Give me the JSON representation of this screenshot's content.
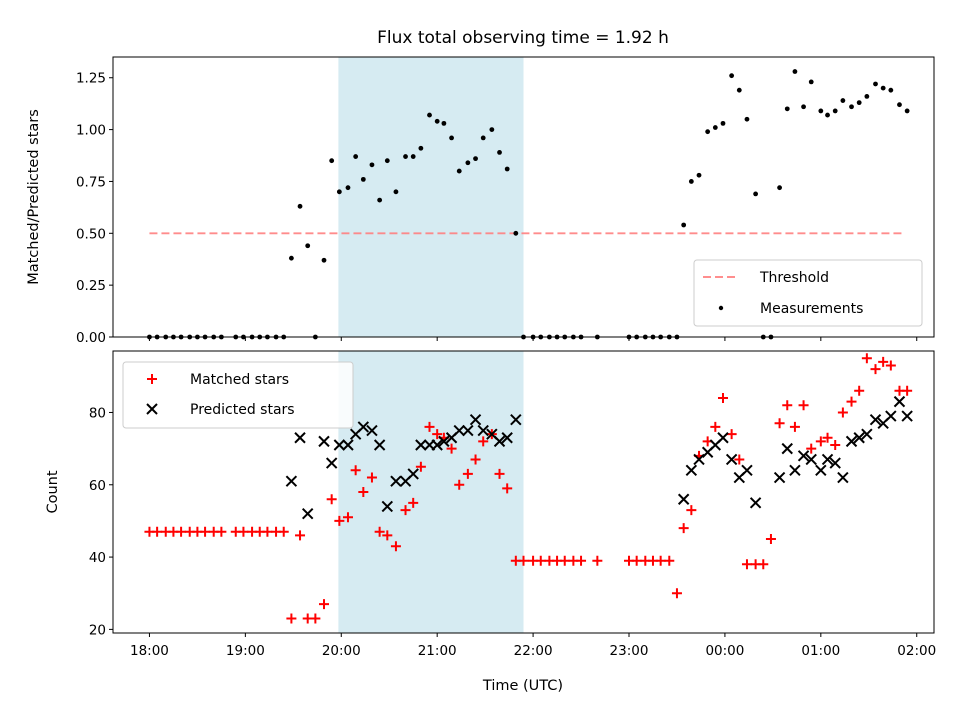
{
  "title": "Flux total observing time = 1.92 h",
  "colors": {
    "shade": "#add8e6",
    "threshold": "#ff7f7f",
    "measurement": "#000000",
    "matched": "#ff0000",
    "predicted": "#000000"
  },
  "chart_data": [
    {
      "type": "scatter",
      "ylabel": "Matched/Predicted stars",
      "ylim": [
        0,
        1.35
      ],
      "yticks": [
        0.0,
        0.25,
        0.5,
        0.75,
        1.0,
        1.25
      ],
      "ytick_labels": [
        "0.00",
        "0.25",
        "0.50",
        "0.75",
        "1.00",
        "1.25"
      ],
      "shaded_interval": [
        19.97,
        21.9
      ],
      "threshold": {
        "name": "Threshold",
        "y": 0.5,
        "x_range": [
          18.0,
          25.85
        ]
      },
      "legend": {
        "location": "lower right",
        "entries": [
          "Threshold",
          "Measurements"
        ]
      },
      "series": [
        {
          "name": "Measurements",
          "x": [
            18.0,
            18.08,
            18.17,
            18.25,
            18.33,
            18.42,
            18.5,
            18.58,
            18.67,
            18.75,
            18.9,
            18.98,
            19.07,
            19.15,
            19.23,
            19.32,
            19.4,
            19.48,
            19.57,
            19.65,
            19.73,
            19.82,
            19.9,
            19.98,
            20.07,
            20.15,
            20.23,
            20.32,
            20.4,
            20.48,
            20.57,
            20.67,
            20.75,
            20.83,
            20.92,
            21.0,
            21.07,
            21.15,
            21.23,
            21.32,
            21.4,
            21.48,
            21.57,
            21.65,
            21.73,
            21.82,
            21.9,
            22.0,
            22.08,
            22.17,
            22.25,
            22.33,
            22.42,
            22.5,
            22.67,
            23.0,
            23.08,
            23.17,
            23.25,
            23.33,
            23.42,
            23.5,
            23.57,
            23.65,
            23.73,
            23.82,
            23.9,
            23.98,
            24.07,
            24.15,
            24.23,
            24.32,
            24.4,
            24.48,
            24.57,
            24.65,
            24.73,
            24.82,
            24.9,
            25.0,
            25.07,
            25.15,
            25.23,
            25.32,
            25.4,
            25.48,
            25.57,
            25.65,
            25.73,
            25.82,
            25.9
          ],
          "y": [
            0,
            0,
            0,
            0,
            0,
            0,
            0,
            0,
            0,
            0,
            0,
            0,
            0,
            0,
            0,
            0,
            0,
            0.38,
            0.63,
            0.44,
            0,
            0.37,
            0.85,
            0.7,
            0.72,
            0.87,
            0.76,
            0.83,
            0.66,
            0.85,
            0.7,
            0.87,
            0.87,
            0.91,
            1.07,
            1.04,
            1.03,
            0.96,
            0.8,
            0.84,
            0.86,
            0.96,
            1.0,
            0.89,
            0.81,
            0.5,
            0,
            0,
            0,
            0,
            0,
            0,
            0,
            0,
            0,
            0,
            0,
            0,
            0,
            0,
            0,
            0,
            0.54,
            0.75,
            0.78,
            0.99,
            1.01,
            1.03,
            1.26,
            1.19,
            1.05,
            0.69,
            0,
            0,
            0.72,
            1.1,
            1.28,
            1.11,
            1.23,
            1.09,
            1.07,
            1.09,
            1.14,
            1.11,
            1.13,
            1.16,
            1.22,
            1.2,
            1.19,
            1.12,
            1.09
          ]
        }
      ]
    },
    {
      "type": "scatter",
      "ylabel": "Count",
      "xlabel": "Time (UTC)",
      "ylim": [
        19,
        97
      ],
      "yticks": [
        20,
        40,
        60,
        80
      ],
      "ytick_labels": [
        "20",
        "40",
        "60",
        "80"
      ],
      "xlim": [
        17.62,
        26.18
      ],
      "xticks": [
        18,
        19,
        20,
        21,
        22,
        23,
        24,
        25,
        26
      ],
      "xtick_labels": [
        "18:00",
        "19:00",
        "20:00",
        "21:00",
        "22:00",
        "23:00",
        "00:00",
        "01:00",
        "02:00"
      ],
      "shaded_interval": [
        19.97,
        21.9
      ],
      "legend": {
        "location": "upper left",
        "entries": [
          "Matched stars",
          "Predicted stars"
        ]
      },
      "series": [
        {
          "name": "Matched stars",
          "marker": "+",
          "x": [
            18.0,
            18.08,
            18.17,
            18.25,
            18.33,
            18.42,
            18.5,
            18.58,
            18.67,
            18.75,
            18.9,
            18.98,
            19.07,
            19.15,
            19.23,
            19.32,
            19.4,
            19.48,
            19.57,
            19.65,
            19.73,
            19.82,
            19.9,
            19.98,
            20.07,
            20.15,
            20.23,
            20.32,
            20.4,
            20.48,
            20.57,
            20.67,
            20.75,
            20.83,
            20.92,
            21.0,
            21.07,
            21.15,
            21.23,
            21.32,
            21.4,
            21.48,
            21.57,
            21.65,
            21.73,
            21.82,
            21.9,
            22.0,
            22.08,
            22.17,
            22.25,
            22.33,
            22.42,
            22.5,
            22.67,
            23.0,
            23.08,
            23.17,
            23.25,
            23.33,
            23.42,
            23.5,
            23.57,
            23.65,
            23.73,
            23.82,
            23.9,
            23.98,
            24.07,
            24.15,
            24.23,
            24.32,
            24.4,
            24.48,
            24.57,
            24.65,
            24.73,
            24.82,
            24.9,
            25.0,
            25.07,
            25.15,
            25.23,
            25.32,
            25.4,
            25.48,
            25.57,
            25.65,
            25.73,
            25.82,
            25.9
          ],
          "y": [
            47,
            47,
            47,
            47,
            47,
            47,
            47,
            47,
            47,
            47,
            47,
            47,
            47,
            47,
            47,
            47,
            47,
            23,
            46,
            23,
            23,
            27,
            56,
            50,
            51,
            64,
            58,
            62,
            47,
            46,
            43,
            53,
            55,
            65,
            76,
            74,
            73,
            70,
            60,
            63,
            67,
            72,
            74,
            63,
            59,
            39,
            39,
            39,
            39,
            39,
            39,
            39,
            39,
            39,
            39,
            39,
            39,
            39,
            39,
            39,
            39,
            30,
            48,
            53,
            68,
            72,
            76,
            84,
            74,
            67,
            38,
            38,
            38,
            45,
            77,
            82,
            76,
            82,
            70,
            72,
            73,
            71,
            80,
            83,
            86,
            95,
            92,
            94,
            93,
            86,
            86
          ]
        },
        {
          "name": "Predicted stars",
          "marker": "x",
          "x": [
            19.48,
            19.57,
            19.65,
            19.82,
            19.9,
            19.98,
            20.07,
            20.15,
            20.23,
            20.32,
            20.4,
            20.48,
            20.57,
            20.67,
            20.75,
            20.83,
            20.92,
            21.0,
            21.07,
            21.15,
            21.23,
            21.32,
            21.4,
            21.48,
            21.57,
            21.65,
            21.73,
            21.82,
            23.57,
            23.65,
            23.73,
            23.82,
            23.9,
            23.98,
            24.07,
            24.15,
            24.23,
            24.32,
            24.57,
            24.65,
            24.73,
            24.82,
            24.9,
            25.0,
            25.07,
            25.15,
            25.23,
            25.32,
            25.4,
            25.48,
            25.57,
            25.65,
            25.73,
            25.82,
            25.9
          ],
          "y": [
            61,
            73,
            52,
            72,
            66,
            71,
            71,
            74,
            76,
            75,
            71,
            54,
            61,
            61,
            63,
            71,
            71,
            71,
            72,
            73,
            75,
            75,
            78,
            75,
            74,
            72,
            73,
            78,
            56,
            64,
            67,
            69,
            71,
            73,
            67,
            62,
            64,
            55,
            62,
            70,
            64,
            68,
            67,
            64,
            67,
            66,
            62,
            72,
            73,
            74,
            78,
            77,
            79,
            83,
            79
          ]
        }
      ]
    }
  ]
}
